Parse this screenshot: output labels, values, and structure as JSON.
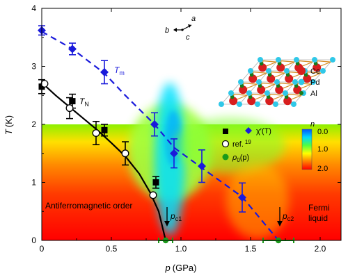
{
  "chart_data": {
    "type": "scatter",
    "xlabel_var": "p",
    "xlabel_unit": "(GPa)",
    "ylabel_var": "T",
    "ylabel_unit": "(K)",
    "xlim": [
      0,
      2.15
    ],
    "ylim": [
      0,
      4
    ],
    "x_ticks": [
      "0",
      "0.5",
      "1.0",
      "1.5",
      "2.0"
    ],
    "y_ticks": [
      "0",
      "1",
      "2",
      "3",
      "4"
    ],
    "heatmap": {
      "label": "n",
      "ticks": [
        "0.0",
        "1.0",
        "2.0"
      ],
      "t_max": 2.0,
      "colors": [
        "#0055ff",
        "#00d8ff",
        "#50ff40",
        "#ffff00",
        "#ff8000",
        "#ff0000"
      ]
    },
    "series": [
      {
        "name": "TN_squares",
        "marker": "square",
        "color": "#000000",
        "points": [
          {
            "x": 0.0,
            "y": 2.65,
            "err": 0.12
          },
          {
            "x": 0.22,
            "y": 2.4,
            "err": 0.12
          },
          {
            "x": 0.45,
            "y": 1.9,
            "err": 0.1
          },
          {
            "x": 0.82,
            "y": 1.0,
            "err": 0.1
          }
        ]
      },
      {
        "name": "ref. 19",
        "marker": "circle-open",
        "color": "#000000",
        "points": [
          {
            "x": 0.02,
            "y": 2.7,
            "err": 0.0
          },
          {
            "x": 0.2,
            "y": 2.28,
            "err": 0.18
          },
          {
            "x": 0.39,
            "y": 1.85,
            "err": 0.2
          },
          {
            "x": 0.6,
            "y": 1.5,
            "err": 0.2
          },
          {
            "x": 0.8,
            "y": 0.78,
            "err": 0.0
          }
        ]
      },
      {
        "name": "χ'(T)",
        "marker": "diamond",
        "color": "#1a1adb",
        "points": [
          {
            "x": 0.0,
            "y": 3.62,
            "err": 0.08
          },
          {
            "x": 0.22,
            "y": 3.3,
            "err": 0.1
          },
          {
            "x": 0.45,
            "y": 2.9,
            "err": 0.2
          },
          {
            "x": 0.81,
            "y": 2.0,
            "err": 0.2
          },
          {
            "x": 0.95,
            "y": 1.5,
            "err": 0.25
          },
          {
            "x": 1.15,
            "y": 1.28,
            "err": 0.28
          },
          {
            "x": 1.44,
            "y": 0.74,
            "err": 0.25
          }
        ]
      },
      {
        "name": "ρ0(p)",
        "marker": "circle",
        "color": "#1a9a1a",
        "points": [
          {
            "x": 0.89,
            "y": 0.0,
            "xerr": 0.05
          },
          {
            "x": 1.7,
            "y": 0.0,
            "xerr": 0.11
          }
        ]
      }
    ],
    "curves": [
      {
        "name": "TN",
        "style": "solid",
        "color": "#000000",
        "x": [
          0.0,
          0.1,
          0.2,
          0.3,
          0.4,
          0.5,
          0.6,
          0.7,
          0.78,
          0.84,
          0.87,
          0.89
        ],
        "y": [
          2.72,
          2.5,
          2.3,
          2.1,
          1.9,
          1.68,
          1.45,
          1.15,
          0.82,
          0.5,
          0.2,
          0.0
        ]
      },
      {
        "name": "Tm",
        "style": "dashed",
        "color": "#1a1adb",
        "x": [
          0.0,
          0.22,
          0.45,
          0.6,
          0.81,
          0.95,
          1.15,
          1.44,
          1.7
        ],
        "y": [
          3.6,
          3.3,
          2.88,
          2.5,
          2.0,
          1.6,
          1.25,
          0.75,
          0.0
        ]
      }
    ],
    "annotations": {
      "Tm": "T",
      "Tm_sub": "m",
      "TN": "T",
      "TN_sub": "N",
      "afm": "Antiferromagnetic order",
      "fermi1": "Fermi",
      "fermi2": "liquid",
      "pc1": "p",
      "pc1_sub": "c1",
      "pc2": "p",
      "pc2_sub": "c2"
    },
    "legend": {
      "chi_label": "χ′(T)",
      "ref_label": "ref.",
      "ref_sup": "19",
      "rho_label": "ρ",
      "rho_sub": "0",
      "rho_tail": "(p)"
    },
    "inset": {
      "axes": [
        "a",
        "b",
        "c"
      ],
      "legend": [
        {
          "label": "Ce",
          "color": "#d81e1e"
        },
        {
          "label": "Pd",
          "color": "#30c8e8"
        },
        {
          "label": "Al",
          "color": "#1a7a1a"
        }
      ]
    }
  }
}
